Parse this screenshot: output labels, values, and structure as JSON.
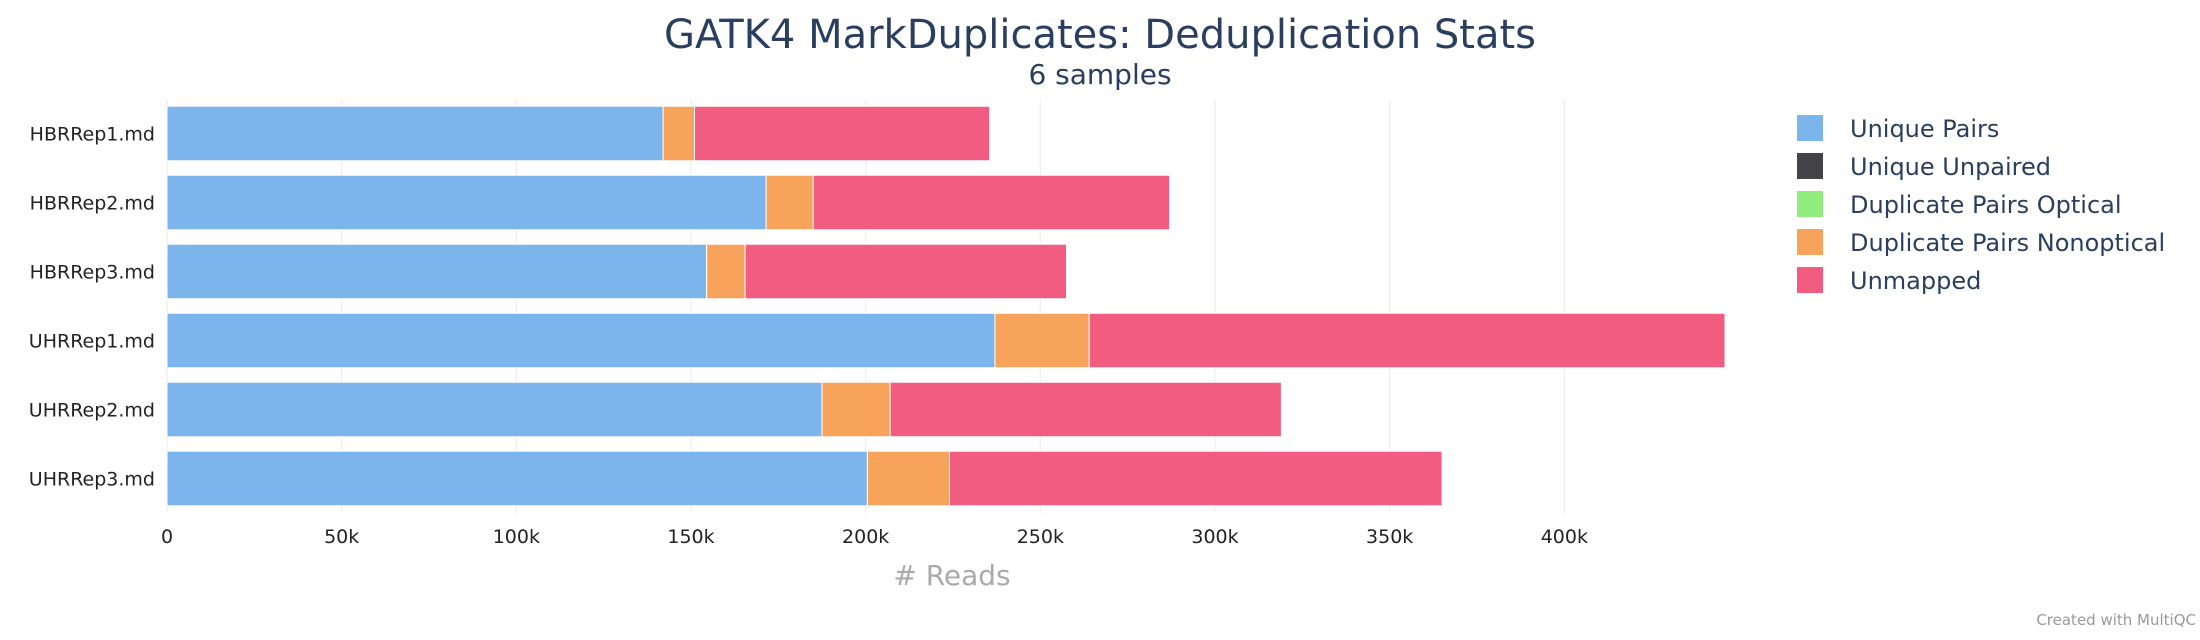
{
  "chart_data": {
    "type": "bar",
    "orientation": "horizontal",
    "stacked": true,
    "title": "GATK4 MarkDuplicates: Deduplication Stats",
    "subtitle": "6 samples",
    "xlabel": "# Reads",
    "ylabel": "",
    "xlim": [
      0,
      450000
    ],
    "x_ticks": [
      {
        "value": 0,
        "label": "0"
      },
      {
        "value": 50000,
        "label": "50k"
      },
      {
        "value": 100000,
        "label": "100k"
      },
      {
        "value": 150000,
        "label": "150k"
      },
      {
        "value": 200000,
        "label": "200k"
      },
      {
        "value": 250000,
        "label": "250k"
      },
      {
        "value": 300000,
        "label": "300k"
      },
      {
        "value": 350000,
        "label": "350k"
      },
      {
        "value": 400000,
        "label": "400k"
      }
    ],
    "grid": true,
    "legend_position": "top-right",
    "categories": [
      "HBRRep1.md",
      "HBRRep2.md",
      "HBRRep3.md",
      "UHRRep1.md",
      "UHRRep2.md",
      "UHRRep3.md"
    ],
    "series": [
      {
        "name": "Unique Pairs",
        "color": "#7cb5ec",
        "values": [
          142000,
          171500,
          154500,
          237000,
          187500,
          200500
        ]
      },
      {
        "name": "Unique Unpaired",
        "color": "#434348",
        "values": [
          0,
          0,
          0,
          0,
          0,
          0
        ]
      },
      {
        "name": "Duplicate Pairs Optical",
        "color": "#90ed7d",
        "values": [
          0,
          0,
          0,
          0,
          0,
          0
        ]
      },
      {
        "name": "Duplicate Pairs Nonoptical",
        "color": "#f7a35c",
        "values": [
          9000,
          13500,
          11000,
          27000,
          19500,
          23500
        ]
      },
      {
        "name": "Unmapped",
        "color": "#f15c80",
        "values": [
          84500,
          102000,
          92000,
          182000,
          112000,
          141000
        ]
      }
    ]
  },
  "credit": "Created with MultiQC"
}
